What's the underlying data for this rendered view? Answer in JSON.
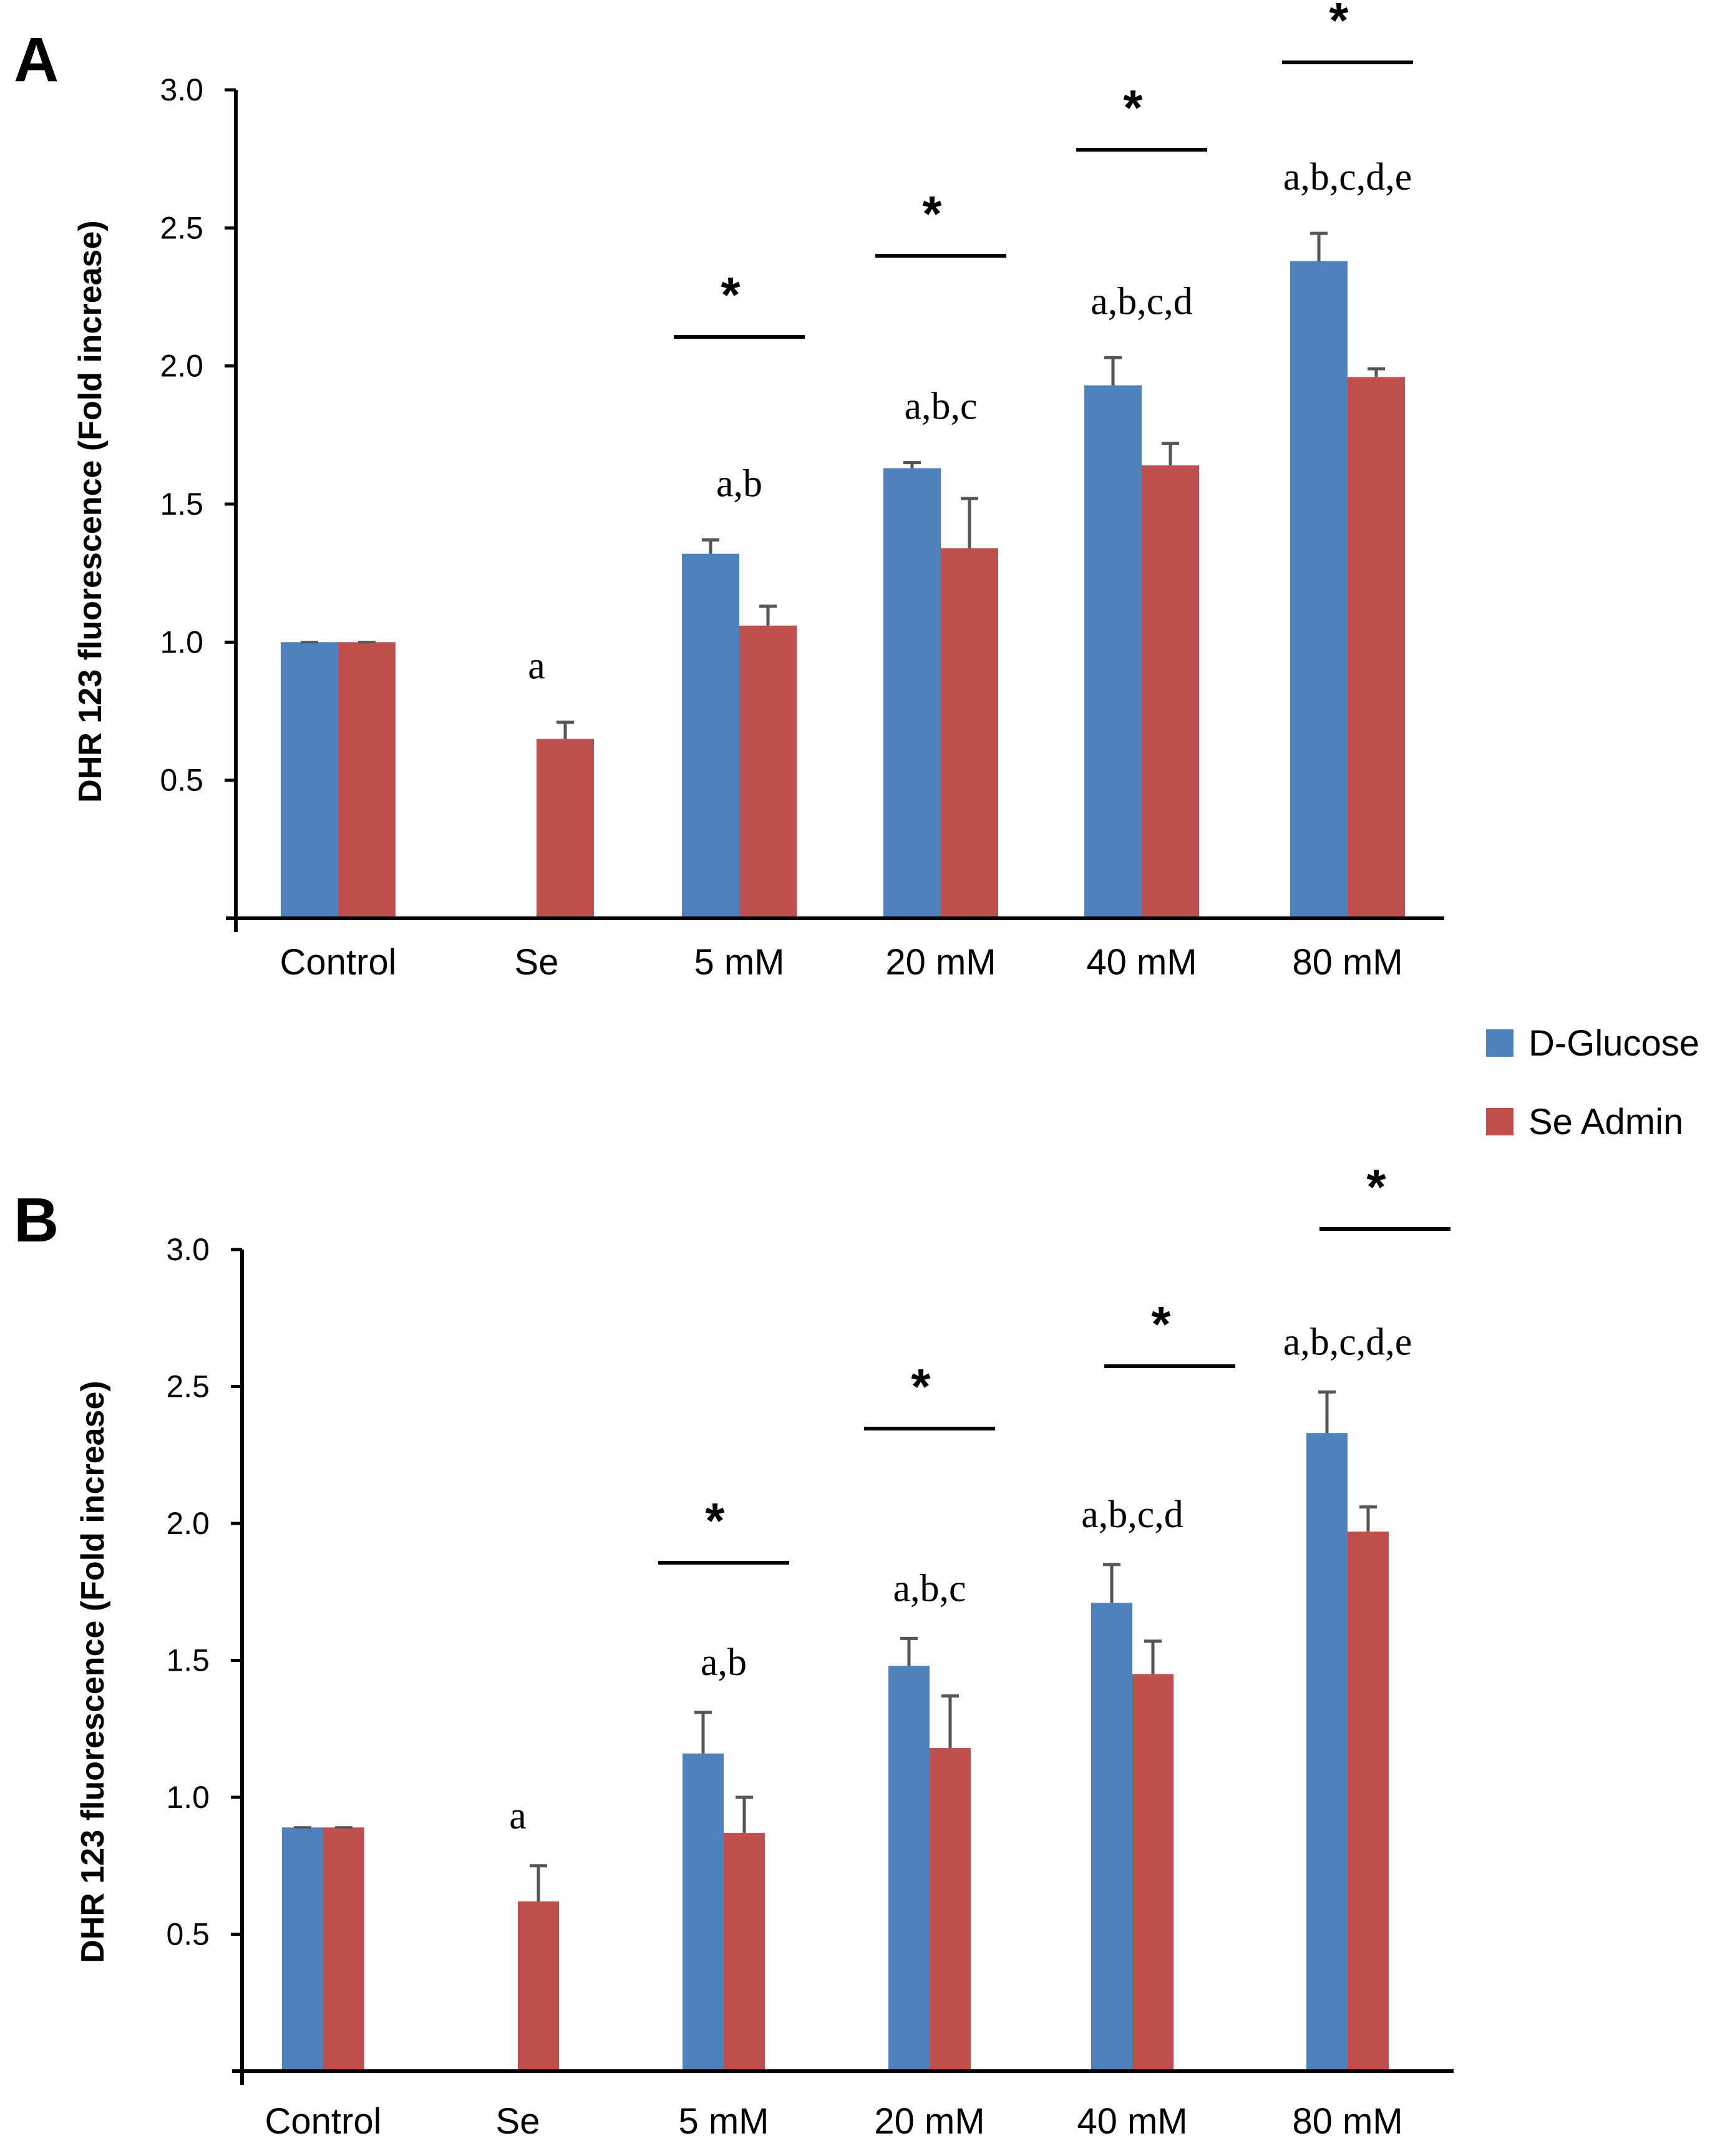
{
  "legend": {
    "entries": [
      {
        "name": "D-Glucose",
        "color": "#4f81bd"
      },
      {
        "name": "Se Admin",
        "color": "#c0504d"
      }
    ]
  },
  "chart_data": [
    {
      "panel": "A",
      "type": "bar",
      "ylabel": "DHR 123 fluorescence (Fold increase)",
      "ylim": [
        0,
        3.0
      ],
      "yticks": [
        "0.5",
        "1.0",
        "1.5",
        "2.0",
        "2.5",
        "3.0"
      ],
      "categories": [
        "Control",
        "Se",
        "5 mM",
        "20 mM",
        "40 mM",
        "80 mM"
      ],
      "series": [
        {
          "name": "D-Glucose",
          "color": "#4f81bd",
          "values": [
            1.0,
            null,
            1.32,
            1.63,
            1.93,
            2.38
          ],
          "errors": [
            0,
            null,
            0.05,
            0.02,
            0.1,
            0.1
          ]
        },
        {
          "name": "Se Admin",
          "color": "#c0504d",
          "values": [
            1.0,
            0.65,
            1.06,
            1.34,
            1.64,
            1.96
          ],
          "errors": [
            0,
            0.06,
            0.07,
            0.18,
            0.08,
            0.03
          ]
        }
      ],
      "annotations": [
        {
          "category": "Se",
          "text": "a"
        },
        {
          "category": "5 mM",
          "text": "a,b"
        },
        {
          "category": "20 mM",
          "text": "a,b,c"
        },
        {
          "category": "40 mM",
          "text": "a,b,c,d"
        },
        {
          "category": "80 mM",
          "text": "a,b,c,d,e"
        }
      ],
      "significance": [
        {
          "category": "5 mM",
          "text": "*"
        },
        {
          "category": "20 mM",
          "text": "*"
        },
        {
          "category": "40 mM",
          "text": "*"
        },
        {
          "category": "80 mM",
          "text": "*"
        }
      ]
    },
    {
      "panel": "B",
      "type": "bar",
      "ylabel": "DHR 123 fluorescence (Fold increase)",
      "ylim": [
        0,
        3.0
      ],
      "yticks": [
        "0.5",
        "1.0",
        "1.5",
        "2.0",
        "2.5",
        "3.0"
      ],
      "categories": [
        "Control",
        "Se",
        "5 mM",
        "20 mM",
        "40 mM",
        "80 mM"
      ],
      "series": [
        {
          "name": "D-Glucose",
          "color": "#4f81bd",
          "values": [
            0.89,
            null,
            1.16,
            1.48,
            1.71,
            2.33
          ],
          "errors": [
            0,
            null,
            0.15,
            0.1,
            0.14,
            0.15
          ]
        },
        {
          "name": "Se Admin",
          "color": "#c0504d",
          "values": [
            0.89,
            0.62,
            0.87,
            1.18,
            1.45,
            1.97
          ],
          "errors": [
            0,
            0.13,
            0.13,
            0.19,
            0.12,
            0.09
          ]
        }
      ],
      "annotations": [
        {
          "category": "Se",
          "text": "a"
        },
        {
          "category": "5 mM",
          "text": "a,b"
        },
        {
          "category": "20 mM",
          "text": "a,b,c"
        },
        {
          "category": "40 mM",
          "text": "a,b,c,d"
        },
        {
          "category": "80 mM",
          "text": "a,b,c,d,e"
        }
      ],
      "significance": [
        {
          "category": "5 mM",
          "text": "*"
        },
        {
          "category": "20 mM",
          "text": "*"
        },
        {
          "category": "40 mM",
          "text": "*"
        },
        {
          "category": "80 mM",
          "text": "*"
        }
      ]
    }
  ]
}
